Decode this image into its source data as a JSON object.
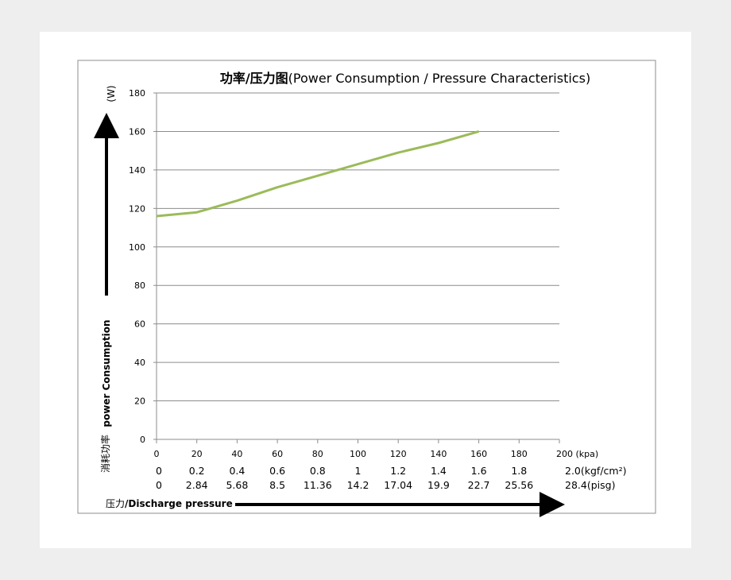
{
  "chart_data": {
    "type": "line",
    "title": "功率/压力图(Power Consumption / Pressure Characteristics)",
    "title_prefix": "功率/压力图",
    "title_main": "(Power Consumption / Pressure Characteristics)",
    "ylabel_unit": "(W)",
    "ylabel_cn": "消耗功率",
    "ylabel_en": "power Consumption",
    "xlabel_cn": "压力",
    "xlabel_en": "/Discharge pressure",
    "ylim": [
      0,
      180
    ],
    "y_ticks": [
      "0",
      "20",
      "40",
      "60",
      "80",
      "100",
      "120",
      "140",
      "160",
      "180"
    ],
    "xlim": [
      0,
      200
    ],
    "x_ticks": [
      "0",
      "20",
      "40",
      "60",
      "80",
      "100",
      "120",
      "140",
      "160",
      "180",
      "200 (kpa)"
    ],
    "kgf_row": [
      "0",
      "0.2",
      "0.4",
      "0.6",
      "0.8",
      "1",
      "1.2",
      "1.4",
      "1.6",
      "1.8",
      "2.0(kgf/cm²)"
    ],
    "psig_row": [
      "0",
      "2.84",
      "5.68",
      "8.5",
      "11.36",
      "14.2",
      "17.04",
      "19.9",
      "22.7",
      "25.56",
      "28.4(pisg)"
    ],
    "grid": true,
    "series": [
      {
        "color": "#9bbb59",
        "x": [
          0,
          20,
          40,
          60,
          80,
          100,
          120,
          140,
          160
        ],
        "y": [
          116,
          118,
          124,
          131,
          137,
          143,
          149,
          154,
          160
        ]
      }
    ]
  }
}
